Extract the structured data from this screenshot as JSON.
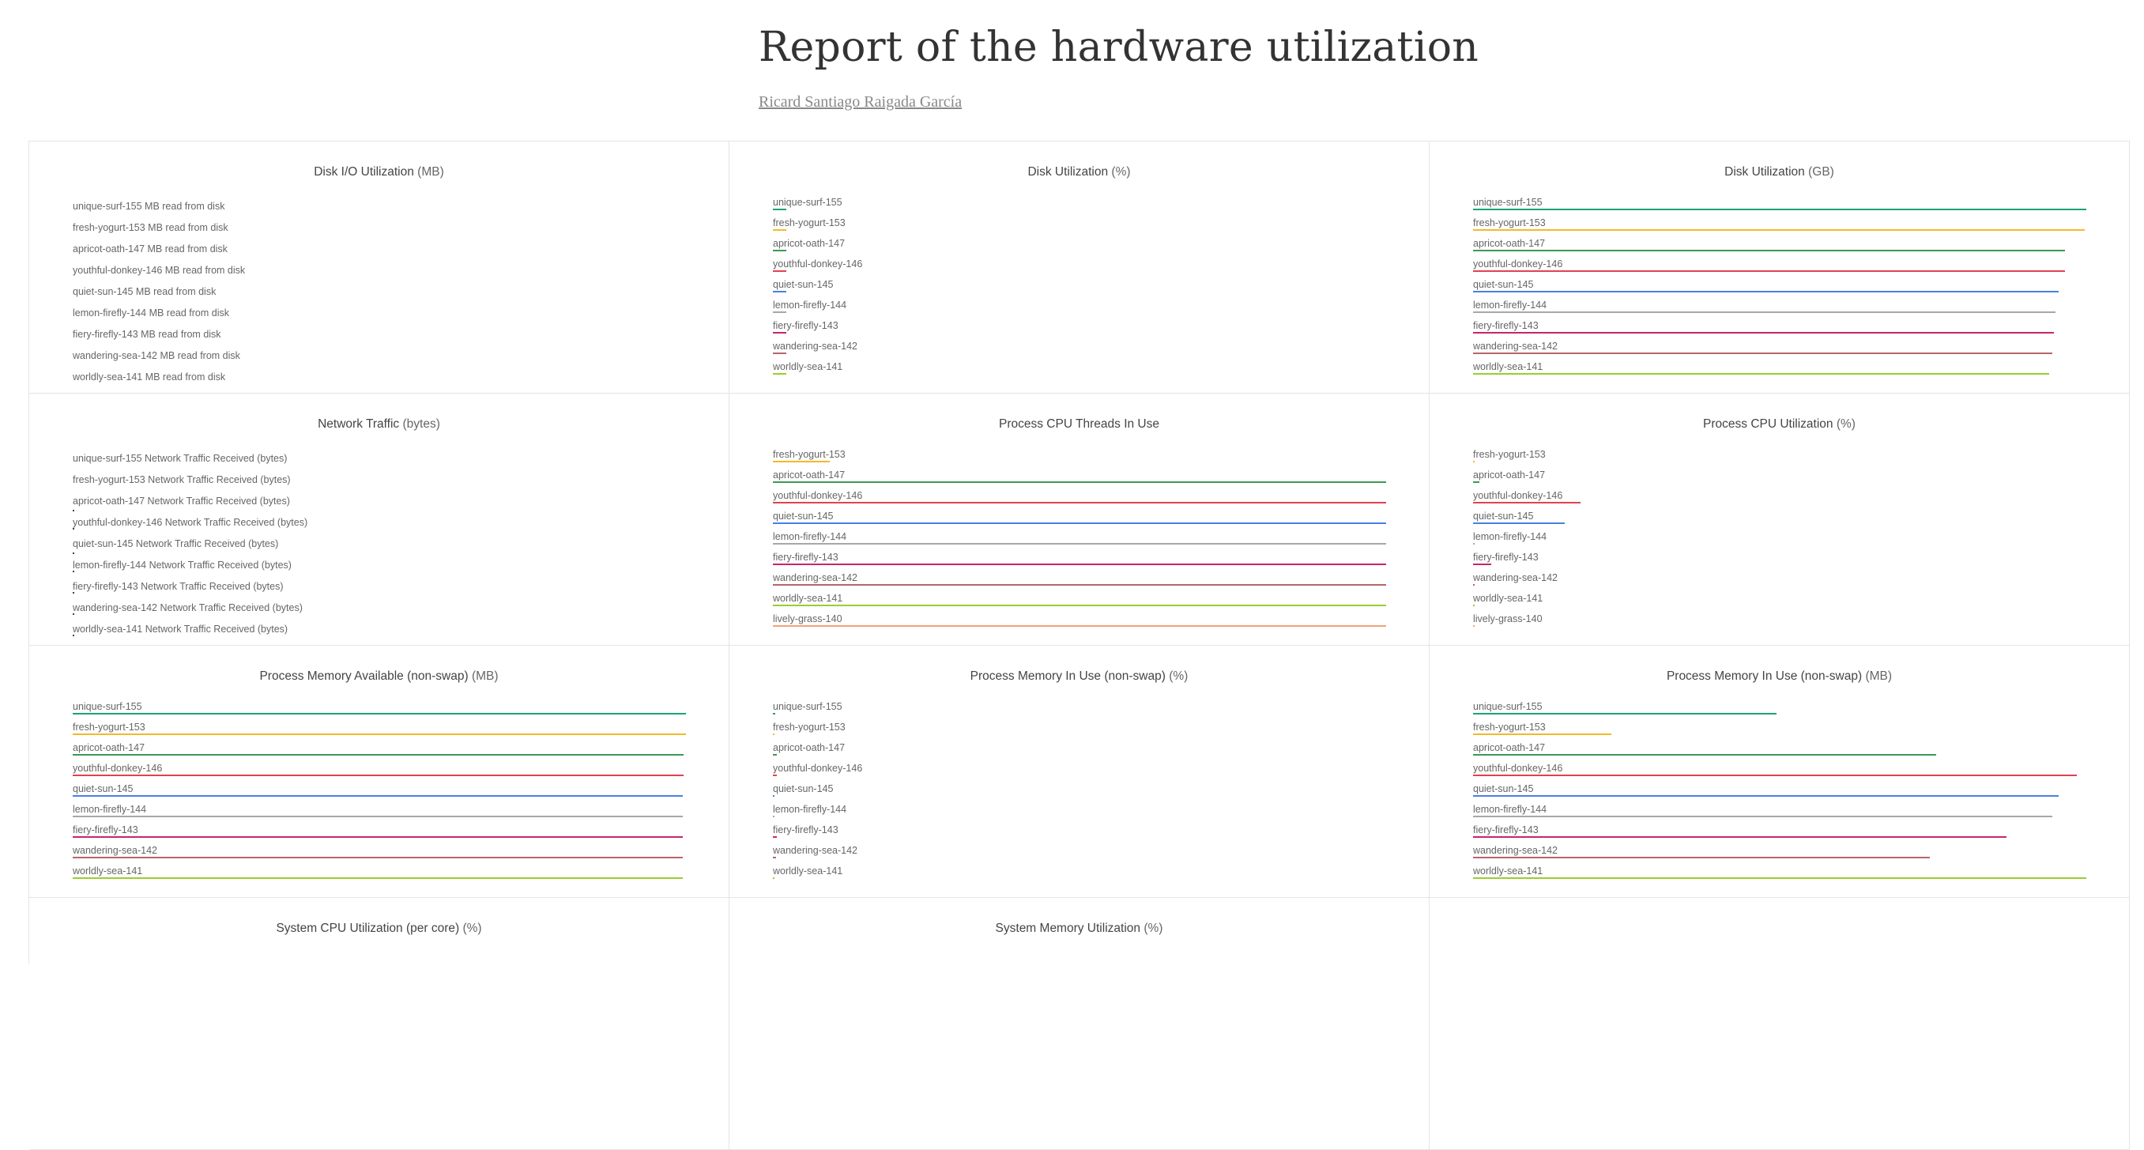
{
  "header": {
    "title": "Report of the hardware utilization",
    "author": "Ricard Santiago Raigada García"
  },
  "colors": {
    "unique-surf-155": "#1aa37a",
    "fresh-yogurt-153": "#f2b92c",
    "apricot-oath-147": "#3a9a55",
    "youthful-donkey-146": "#e0434f",
    "quiet-sun-145": "#4a7fe3",
    "lemon-firefly-144": "#a7a7a7",
    "fiery-firefly-143": "#c7256e",
    "wandering-sea-142": "#b5666a",
    "worldly-sea-141": "#9acd32",
    "lively-grass-140": "#f2a27a"
  },
  "chart_data": [
    {
      "type": "bar",
      "title": "Disk I/O Utilization",
      "unit": "(MB)",
      "categories": [
        "unique-surf-155 MB read from disk",
        "fresh-yogurt-153 MB read from disk",
        "apricot-oath-147 MB read from disk",
        "youthful-donkey-146 MB read from disk",
        "quiet-sun-145 MB read from disk",
        "lemon-firefly-144 MB read from disk",
        "fiery-firefly-143 MB read from disk",
        "wandering-sea-142 MB read from disk",
        "worldly-sea-141 MB read from disk"
      ],
      "runs": [
        "unique-surf-155",
        "fresh-yogurt-153",
        "apricot-oath-147",
        "youthful-donkey-146",
        "quiet-sun-145",
        "lemon-firefly-144",
        "fiery-firefly-143",
        "wandering-sea-142",
        "worldly-sea-141"
      ],
      "values": [
        0,
        0,
        0,
        0,
        0,
        0,
        0,
        0,
        0
      ],
      "xlim": [
        0,
        1
      ],
      "style": "text"
    },
    {
      "type": "bar",
      "title": "Disk Utilization",
      "unit": "(%)",
      "categories": [
        "unique-surf-155",
        "fresh-yogurt-153",
        "apricot-oath-147",
        "youthful-donkey-146",
        "quiet-sun-145",
        "lemon-firefly-144",
        "fiery-firefly-143",
        "wandering-sea-142",
        "worldly-sea-141"
      ],
      "values": [
        0.022,
        0.022,
        0.022,
        0.022,
        0.022,
        0.022,
        0.022,
        0.022,
        0.022
      ],
      "xlim": [
        0,
        1
      ]
    },
    {
      "type": "bar",
      "title": "Disk Utilization",
      "unit": "(GB)",
      "categories": [
        "unique-surf-155",
        "fresh-yogurt-153",
        "apricot-oath-147",
        "youthful-donkey-146",
        "quiet-sun-145",
        "lemon-firefly-144",
        "fiery-firefly-143",
        "wandering-sea-142",
        "worldly-sea-141"
      ],
      "values": [
        1.0,
        0.998,
        0.965,
        0.965,
        0.955,
        0.95,
        0.947,
        0.944,
        0.94
      ],
      "xlim": [
        0,
        1
      ]
    },
    {
      "type": "bar",
      "title": "Network Traffic",
      "unit": "(bytes)",
      "categories": [
        "unique-surf-155 Network Traffic Received (bytes)",
        "fresh-yogurt-153 Network Traffic Received (bytes)",
        "apricot-oath-147 Network Traffic Received (bytes)",
        "youthful-donkey-146 Network Traffic Received (bytes)",
        "quiet-sun-145 Network Traffic Received (bytes)",
        "lemon-firefly-144 Network Traffic Received (bytes)",
        "fiery-firefly-143 Network Traffic Received (bytes)",
        "wandering-sea-142 Network Traffic Received (bytes)",
        "worldly-sea-141 Network Traffic Received (bytes)"
      ],
      "runs": [
        "unique-surf-155",
        "fresh-yogurt-153",
        "apricot-oath-147",
        "youthful-donkey-146",
        "quiet-sun-145",
        "lemon-firefly-144",
        "fiery-firefly-143",
        "wandering-sea-142",
        "worldly-sea-141"
      ],
      "values": [
        0,
        0,
        0,
        0,
        0,
        0,
        0,
        0,
        0
      ],
      "xlim": [
        0,
        1
      ],
      "style": "text"
    },
    {
      "type": "bar",
      "title": "Process CPU Threads In Use",
      "unit": "",
      "categories": [
        "fresh-yogurt-153",
        "apricot-oath-147",
        "youthful-donkey-146",
        "quiet-sun-145",
        "lemon-firefly-144",
        "fiery-firefly-143",
        "wandering-sea-142",
        "worldly-sea-141",
        "lively-grass-140"
      ],
      "values": [
        0.093,
        1.0,
        1.0,
        1.0,
        1.0,
        1.0,
        1.0,
        1.0,
        1.0
      ],
      "xlim": [
        0,
        1
      ]
    },
    {
      "type": "bar",
      "title": "Process CPU Utilization",
      "unit": "(%)",
      "categories": [
        "fresh-yogurt-153",
        "apricot-oath-147",
        "youthful-donkey-146",
        "quiet-sun-145",
        "lemon-firefly-144",
        "fiery-firefly-143",
        "wandering-sea-142",
        "worldly-sea-141",
        "lively-grass-140"
      ],
      "values": [
        0.001,
        0.01,
        0.175,
        0.15,
        0.001,
        0.03,
        0.001,
        0.001,
        0.001
      ],
      "xlim": [
        0,
        1
      ]
    },
    {
      "type": "bar",
      "title": "Process Memory Available (non-swap)",
      "unit": "(MB)",
      "categories": [
        "unique-surf-155",
        "fresh-yogurt-153",
        "apricot-oath-147",
        "youthful-donkey-146",
        "quiet-sun-145",
        "lemon-firefly-144",
        "fiery-firefly-143",
        "wandering-sea-142",
        "worldly-sea-141"
      ],
      "values": [
        1.0,
        1.0,
        0.996,
        0.996,
        0.995,
        0.995,
        0.995,
        0.995,
        0.995
      ],
      "xlim": [
        0,
        1
      ]
    },
    {
      "type": "bar",
      "title": "Process Memory In Use (non-swap)",
      "unit": "(%)",
      "categories": [
        "unique-surf-155",
        "fresh-yogurt-153",
        "apricot-oath-147",
        "youthful-donkey-146",
        "quiet-sun-145",
        "lemon-firefly-144",
        "fiery-firefly-143",
        "wandering-sea-142",
        "worldly-sea-141"
      ],
      "values": [
        0.004,
        0.001,
        0.006,
        0.006,
        0.002,
        0.001,
        0.006,
        0.005,
        0.002
      ],
      "xlim": [
        0,
        1
      ]
    },
    {
      "type": "bar",
      "title": "Process Memory In Use (non-swap)",
      "unit": "(MB)",
      "categories": [
        "unique-surf-155",
        "fresh-yogurt-153",
        "apricot-oath-147",
        "youthful-donkey-146",
        "quiet-sun-145",
        "lemon-firefly-144",
        "fiery-firefly-143",
        "wandering-sea-142",
        "worldly-sea-141"
      ],
      "values": [
        0.495,
        0.225,
        0.755,
        0.985,
        0.955,
        0.945,
        0.87,
        0.745,
        1.0
      ],
      "xlim": [
        0,
        1
      ]
    },
    {
      "type": "bar",
      "title": "System CPU Utilization (per core)",
      "unit": "(%)",
      "categories": [],
      "values": []
    },
    {
      "type": "bar",
      "title": "System Memory Utilization",
      "unit": "(%)",
      "categories": [],
      "values": []
    }
  ]
}
